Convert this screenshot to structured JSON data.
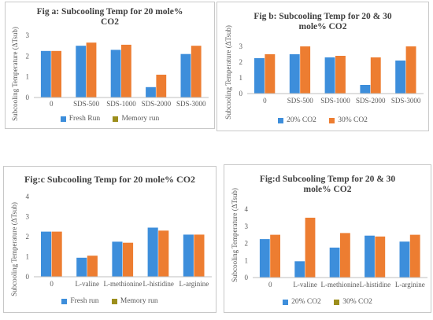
{
  "colors": {
    "blue": "#3d8edb",
    "orange": "#ed7d31",
    "olive": "#9c8e1c",
    "axis": "#bfbfbf",
    "text": "#595959"
  },
  "chart_data": [
    {
      "id": "pa",
      "type": "bar",
      "title": "Fig a: Subcooling Temp for 20 mole% CO2",
      "ylabel": "Subcooling Temperature (ΔTsub)",
      "xlabel": "",
      "ylim": [
        0,
        3
      ],
      "yticks": [
        "0",
        "1",
        "2",
        "3"
      ],
      "categories": [
        "0",
        "SDS-500",
        "SDS-1000",
        "SDS-2000",
        "SDS-3000"
      ],
      "legend_position": "bottom",
      "series": [
        {
          "name": "Fresh Run",
          "legend_color": "#3d8edb",
          "bar_color": "#3d8edb",
          "values": [
            2.25,
            2.5,
            2.3,
            0.5,
            2.1
          ]
        },
        {
          "name": "Memory run",
          "legend_color": "#9c8e1c",
          "bar_color": "#ed7d31",
          "values": [
            2.25,
            2.65,
            2.55,
            1.1,
            2.5
          ]
        }
      ]
    },
    {
      "id": "pb",
      "type": "bar",
      "title": "Fig b: Subcooling Temp for 20 & 30 mole% CO2",
      "ylabel": "Subcooling Temperature (ΔTsub)",
      "xlabel": "",
      "ylim": [
        0,
        3
      ],
      "yticks": [
        "0",
        "1",
        "2",
        "3"
      ],
      "categories": [
        "0",
        "SDS-500",
        "SDS-1000",
        "SDS-2000",
        "SDS-3000"
      ],
      "legend_position": "bottom",
      "series": [
        {
          "name": "20% CO2",
          "legend_color": "#3d8edb",
          "bar_color": "#3d8edb",
          "values": [
            2.25,
            2.5,
            2.3,
            0.55,
            2.1
          ]
        },
        {
          "name": "30% CO2",
          "legend_color": "#ed7d31",
          "bar_color": "#ed7d31",
          "values": [
            2.5,
            3.0,
            2.4,
            2.3,
            3.0
          ]
        }
      ]
    },
    {
      "id": "pc",
      "type": "bar",
      "title": "Fig:c Subcooling Temp for 20 mole% CO2",
      "ylabel": "Subcooling Temperature (ΔTsub)",
      "xlabel": "",
      "ylim": [
        0,
        4
      ],
      "yticks": [
        "0",
        "1",
        "2",
        "3",
        "4"
      ],
      "categories": [
        "0",
        "L-valine",
        "L-methionine",
        "L-histidine",
        "L-arginine"
      ],
      "legend_position": "bottom",
      "series": [
        {
          "name": "Fresh run",
          "legend_color": "#3d8edb",
          "bar_color": "#3d8edb",
          "values": [
            2.25,
            0.95,
            1.75,
            2.45,
            2.1
          ]
        },
        {
          "name": "Memory run",
          "legend_color": "#9c8e1c",
          "bar_color": "#ed7d31",
          "values": [
            2.25,
            1.05,
            1.7,
            2.3,
            2.1
          ]
        }
      ]
    },
    {
      "id": "pd",
      "type": "bar",
      "title": "Fig:d Subcooling Temp for 20 & 30 mole% CO2",
      "ylabel": "Subcooling Temperature (ΔTsub)",
      "xlabel": "",
      "ylim": [
        0,
        4
      ],
      "yticks": [
        "0",
        "1",
        "2",
        "3",
        "4"
      ],
      "categories": [
        "0",
        "L-valine",
        "L-methionine",
        "L-histidine",
        "L-arginine"
      ],
      "legend_position": "bottom",
      "series": [
        {
          "name": "20% CO2",
          "legend_color": "#3d8edb",
          "bar_color": "#3d8edb",
          "values": [
            2.25,
            0.95,
            1.75,
            2.45,
            2.1
          ]
        },
        {
          "name": "30% CO2",
          "legend_color": "#9c8e1c",
          "bar_color": "#ed7d31",
          "values": [
            2.5,
            3.5,
            2.6,
            2.4,
            2.5
          ]
        }
      ]
    }
  ]
}
